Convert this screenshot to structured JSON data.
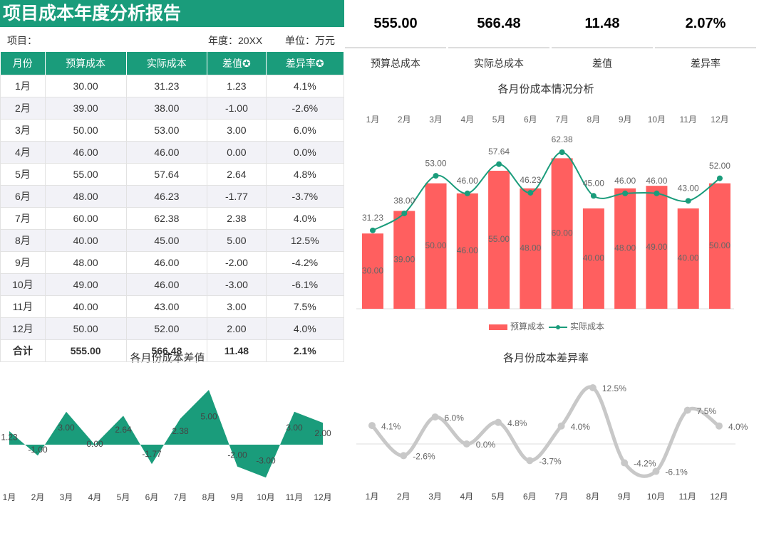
{
  "header": {
    "title": "项目成本年度分析报告",
    "project": "项目：",
    "year": "年度：20XX",
    "unit": "单位：万元"
  },
  "kpis": [
    {
      "value": "555.00",
      "label": "预算总成本"
    },
    {
      "value": "566.48",
      "label": "实际总成本"
    },
    {
      "value": "11.48",
      "label": "差值"
    },
    {
      "value": "2.07%",
      "label": "差异率"
    }
  ],
  "table": {
    "columns": [
      "月份",
      "预算成本",
      "实际成本",
      "差值✪",
      "差异率✪"
    ],
    "rows": [
      [
        "1月",
        "30.00",
        "31.23",
        "1.23",
        "4.1%"
      ],
      [
        "2月",
        "39.00",
        "38.00",
        "-1.00",
        "-2.6%"
      ],
      [
        "3月",
        "50.00",
        "53.00",
        "3.00",
        "6.0%"
      ],
      [
        "4月",
        "46.00",
        "46.00",
        "0.00",
        "0.0%"
      ],
      [
        "5月",
        "55.00",
        "57.64",
        "2.64",
        "4.8%"
      ],
      [
        "6月",
        "48.00",
        "46.23",
        "-1.77",
        "-3.7%"
      ],
      [
        "7月",
        "60.00",
        "62.38",
        "2.38",
        "4.0%"
      ],
      [
        "8月",
        "40.00",
        "45.00",
        "5.00",
        "12.5%"
      ],
      [
        "9月",
        "48.00",
        "46.00",
        "-2.00",
        "-4.2%"
      ],
      [
        "10月",
        "49.00",
        "46.00",
        "-3.00",
        "-6.1%"
      ],
      [
        "11月",
        "40.00",
        "43.00",
        "3.00",
        "7.5%"
      ],
      [
        "12月",
        "50.00",
        "52.00",
        "2.00",
        "4.0%"
      ]
    ],
    "total": [
      "合计",
      "555.00",
      "566.48",
      "11.48",
      "2.1%"
    ]
  },
  "chart_data": [
    {
      "type": "bar",
      "title": "各月份成本情况分析",
      "categories": [
        "1月",
        "2月",
        "3月",
        "4月",
        "5月",
        "6月",
        "7月",
        "8月",
        "9月",
        "10月",
        "11月",
        "12月"
      ],
      "legend": "bottom",
      "series": [
        {
          "name": "预算成本",
          "type": "bar",
          "color": "#ff5f5f",
          "values": [
            30,
            39,
            50,
            46,
            55,
            48,
            60,
            40,
            48,
            49,
            40,
            50
          ],
          "value_labels": [
            "30.00",
            "39.00",
            "50.00",
            "46.00",
            "55.00",
            "48.00",
            "60.00",
            "40.00",
            "48.00",
            "49.00",
            "40.00",
            "50.00"
          ]
        },
        {
          "name": "实际成本",
          "type": "line",
          "color": "#1a9c7b",
          "values": [
            31.23,
            38,
            53,
            46,
            57.64,
            46.23,
            62.38,
            45,
            46,
            46,
            43,
            52
          ],
          "value_labels": [
            "31.23",
            "38.00",
            "53.00",
            "46.00",
            "57.64",
            "46.23",
            "62.38",
            "45.00",
            "46.00",
            "46.00",
            "43.00",
            "52.00"
          ]
        }
      ]
    },
    {
      "type": "area",
      "title": "各月份成本差值",
      "categories": [
        "1月",
        "2月",
        "3月",
        "4月",
        "5月",
        "6月",
        "7月",
        "8月",
        "9月",
        "10月",
        "11月",
        "12月"
      ],
      "color": "#1a9c7b",
      "values": [
        1.23,
        -1,
        3,
        0,
        2.64,
        -1.77,
        2.38,
        5,
        -2,
        -3,
        3,
        2
      ],
      "value_labels": [
        "1.23",
        "-1.00",
        "3.00",
        "0.00",
        "2.64",
        "-1.77",
        "2.38",
        "5.00",
        "-2.00",
        "-3.00",
        "3.00",
        "2.00"
      ]
    },
    {
      "type": "line",
      "title": "各月份成本差异率",
      "categories": [
        "1月",
        "2月",
        "3月",
        "4月",
        "5月",
        "6月",
        "7月",
        "8月",
        "9月",
        "10月",
        "11月",
        "12月"
      ],
      "color": "#c8c8c8",
      "values": [
        4.1,
        -2.6,
        6.0,
        0,
        4.8,
        -3.7,
        4.0,
        12.5,
        -4.2,
        -6.1,
        7.5,
        4.0
      ],
      "value_labels": [
        "4.1%",
        "-2.6%",
        "6.0%",
        "0.0%",
        "4.8%",
        "-3.7%",
        "4.0%",
        "12.5%",
        "-4.2%",
        "-6.1%",
        "7.5%",
        "4.0%"
      ]
    }
  ]
}
